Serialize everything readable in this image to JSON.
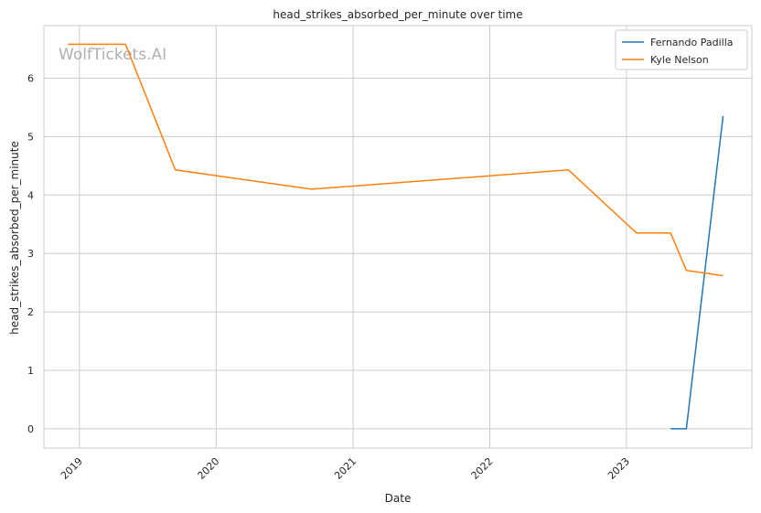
{
  "chart_data": {
    "type": "line",
    "title": "head_strikes_absorbed_per_minute over time",
    "xlabel": "Date",
    "ylabel": "head_strikes_absorbed_per_minute",
    "watermark": "WolfTickets.AI",
    "grid": true,
    "legend_position": "top-right",
    "x_ticks": [
      "2019",
      "2020",
      "2021",
      "2022",
      "2023"
    ],
    "y_ticks": [
      "0",
      "1",
      "2",
      "3",
      "4",
      "5",
      "6"
    ],
    "xlim": [
      "2018-09-28",
      "2023-12-02"
    ],
    "ylim": [
      -0.33,
      6.9
    ],
    "series": [
      {
        "name": "Fernando Padilla",
        "color": "#1f77b4",
        "points": [
          {
            "x": "2023-04-29",
            "y": 0.0
          },
          {
            "x": "2023-06-10",
            "y": 0.0
          },
          {
            "x": "2023-09-16",
            "y": 5.35
          }
        ]
      },
      {
        "name": "Kyle Nelson",
        "color": "#ff7f0e",
        "points": [
          {
            "x": "2018-12-01",
            "y": 6.58
          },
          {
            "x": "2019-05-04",
            "y": 6.58
          },
          {
            "x": "2019-09-14",
            "y": 4.43
          },
          {
            "x": "2020-09-12",
            "y": 4.1
          },
          {
            "x": "2022-07-30",
            "y": 4.43
          },
          {
            "x": "2023-01-28",
            "y": 3.35
          },
          {
            "x": "2023-04-29",
            "y": 3.35
          },
          {
            "x": "2023-06-10",
            "y": 2.71
          },
          {
            "x": "2023-09-16",
            "y": 2.62
          }
        ]
      }
    ]
  }
}
